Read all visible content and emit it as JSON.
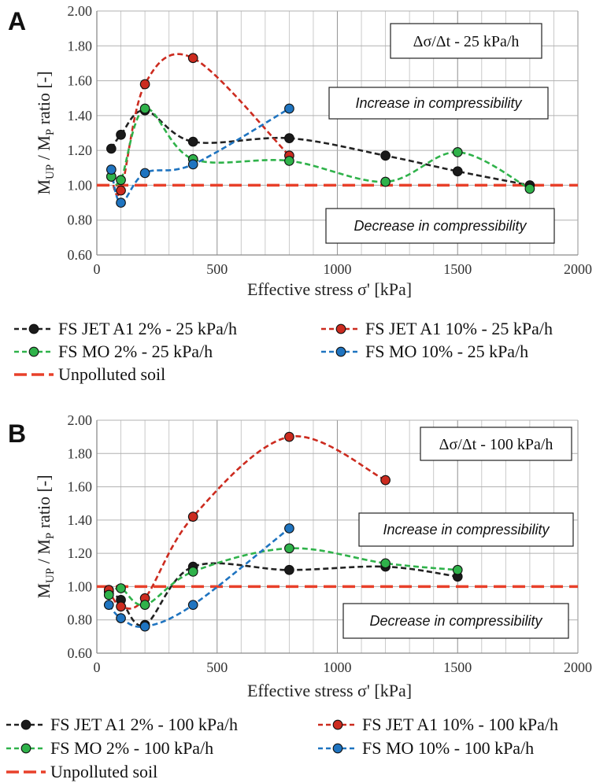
{
  "chart_data": [
    {
      "panel": "A",
      "type": "line",
      "x_axis_label": "Effective stress σ' [kPa]",
      "y_axis_label_main": "M",
      "y_axis_label_sub1": "UP",
      "y_axis_label_mid": " / M",
      "y_axis_label_sub2": "P",
      "y_axis_label_end": " ratio [-]",
      "xlim": [
        0,
        2000
      ],
      "ylim": [
        0.6,
        2.0
      ],
      "x_ticks": [
        "0",
        "500",
        "1000",
        "1500",
        "2000"
      ],
      "x_tick_values": [
        0,
        500,
        1000,
        1500,
        2000
      ],
      "y_ticks": [
        "0.60",
        "0.80",
        "1.00",
        "1.20",
        "1.40",
        "1.60",
        "1.80",
        "2.00"
      ],
      "y_tick_values": [
        0.6,
        0.8,
        1.0,
        1.2,
        1.4,
        1.6,
        1.8,
        2.0
      ],
      "rate_label": "Δσ/Δt - 25 kPa/h",
      "increase_label": "Increase in compressibility",
      "decrease_label": "Decrease in compressibility",
      "reference": {
        "name": "Unpolluted soil",
        "value": 1.0,
        "color": "#e8402a"
      },
      "series": [
        {
          "name": "FS JET A1 2% - 25 kPa/h",
          "color": "#222222",
          "fill": "#1a1a1a",
          "x": [
            60,
            100,
            200,
            400,
            800,
            1200,
            1500,
            1800
          ],
          "y": [
            1.21,
            1.29,
            1.43,
            1.25,
            1.27,
            1.17,
            1.08,
            1.0
          ]
        },
        {
          "name": "FS JET A1 10% - 25 kPa/h",
          "color": "#cc2b1f",
          "fill": "#cc2b1f",
          "x": [
            60,
            100,
            200,
            400,
            800
          ],
          "y": [
            1.05,
            0.97,
            1.58,
            1.73,
            1.17
          ]
        },
        {
          "name": "FS MO 2% - 25 kPa/h",
          "color": "#2fb24a",
          "fill": "#2fb24a",
          "x": [
            60,
            100,
            200,
            400,
            800,
            1200,
            1500,
            1800
          ],
          "y": [
            1.05,
            1.03,
            1.44,
            1.15,
            1.14,
            1.02,
            1.19,
            0.98
          ]
        },
        {
          "name": "FS MO 10% - 25 kPa/h",
          "color": "#1f74c0",
          "fill": "#1f74c0",
          "x": [
            60,
            100,
            200,
            400,
            800
          ],
          "y": [
            1.09,
            0.9,
            1.07,
            1.12,
            1.44
          ]
        }
      ]
    },
    {
      "panel": "B",
      "type": "line",
      "x_axis_label": "Effective stress σ' [kPa]",
      "y_axis_label_main": "M",
      "y_axis_label_sub1": "UP",
      "y_axis_label_mid": " / M",
      "y_axis_label_sub2": "P",
      "y_axis_label_end": " ratio [-]",
      "xlim": [
        0,
        2000
      ],
      "ylim": [
        0.6,
        2.0
      ],
      "x_ticks": [
        "0",
        "500",
        "1000",
        "1500",
        "2000"
      ],
      "x_tick_values": [
        0,
        500,
        1000,
        1500,
        2000
      ],
      "y_ticks": [
        "0.60",
        "0.80",
        "1.00",
        "1.20",
        "1.40",
        "1.60",
        "1.80",
        "2.00"
      ],
      "y_tick_values": [
        0.6,
        0.8,
        1.0,
        1.2,
        1.4,
        1.6,
        1.8,
        2.0
      ],
      "rate_label": "Δσ/Δt - 100 kPa/h",
      "increase_label": "Increase in compressibility",
      "decrease_label": "Decrease in compressibility",
      "reference": {
        "name": "Unpolluted soil",
        "value": 1.0,
        "color": "#e8402a"
      },
      "series": [
        {
          "name": "FS JET A1 2% - 100 kPa/h",
          "color": "#222222",
          "fill": "#1a1a1a",
          "x": [
            50,
            100,
            200,
            400,
            800,
            1200,
            1500
          ],
          "y": [
            0.97,
            0.92,
            0.77,
            1.12,
            1.1,
            1.12,
            1.06
          ]
        },
        {
          "name": "FS JET A1 10% - 100 kPa/h",
          "color": "#cc2b1f",
          "fill": "#cc2b1f",
          "x": [
            50,
            100,
            200,
            400,
            800,
            1200
          ],
          "y": [
            0.98,
            0.88,
            0.93,
            1.42,
            1.9,
            1.64
          ]
        },
        {
          "name": "FS MO 2% - 100 kPa/h",
          "color": "#2fb24a",
          "fill": "#2fb24a",
          "x": [
            50,
            100,
            200,
            400,
            800,
            1200,
            1500
          ],
          "y": [
            0.95,
            0.99,
            0.89,
            1.09,
            1.23,
            1.14,
            1.1
          ]
        },
        {
          "name": "FS MO 10% - 100 kPa/h",
          "color": "#1f74c0",
          "fill": "#1f74c0",
          "x": [
            50,
            100,
            200,
            400,
            800
          ],
          "y": [
            0.89,
            0.81,
            0.76,
            0.89,
            1.35
          ]
        }
      ]
    }
  ]
}
